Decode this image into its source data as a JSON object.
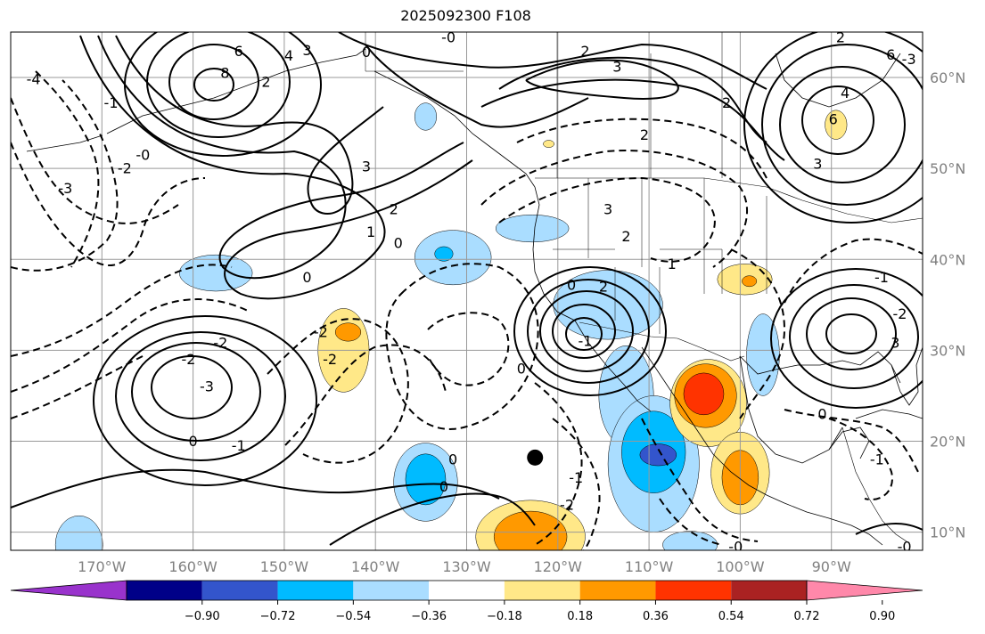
{
  "title": "2025092300 F108",
  "map": {
    "projection": "cylindrical",
    "lon_range": [
      -180,
      -80
    ],
    "lat_range": [
      8,
      65
    ],
    "lon_ticks": [
      {
        "value": -170,
        "label": "170°W"
      },
      {
        "value": -160,
        "label": "160°W"
      },
      {
        "value": -150,
        "label": "150°W"
      },
      {
        "value": -140,
        "label": "140°W"
      },
      {
        "value": -130,
        "label": "130°W"
      },
      {
        "value": -120,
        "label": "120°W"
      },
      {
        "value": -110,
        "label": "110°W"
      },
      {
        "value": -100,
        "label": "100°W"
      },
      {
        "value": -90,
        "label": "90°W"
      }
    ],
    "lat_ticks": [
      {
        "value": 60,
        "label": "60°N"
      },
      {
        "value": 50,
        "label": "50°N"
      },
      {
        "value": 40,
        "label": "40°N"
      },
      {
        "value": 30,
        "label": "30°N"
      },
      {
        "value": 20,
        "label": "20°N"
      },
      {
        "value": 10,
        "label": "10°N"
      }
    ],
    "grid": true,
    "marker": {
      "lon": -122.5,
      "lat": 18.2,
      "color": "#000000"
    }
  },
  "colorbar": {
    "colors": [
      "#9933cc",
      "#000088",
      "#3355cc",
      "#00bbff",
      "#aaddff",
      "#ffffff",
      "#ffe888",
      "#ff9900",
      "#ff3300",
      "#aa2222",
      "#ff88aa"
    ],
    "tick_labels": [
      "−0.90",
      "−0.72",
      "−0.54",
      "−0.36",
      "−0.18",
      "0.18",
      "0.36",
      "0.54",
      "0.72",
      "0.90"
    ],
    "extend": "both"
  },
  "shaded_regions": [
    {
      "level": "−0.36..−0.18",
      "color": "#aaddff",
      "center": [
        -157.5,
        38.5
      ],
      "radius": [
        4.0,
        2.0
      ]
    },
    {
      "level": "−0.36..−0.18",
      "color": "#aaddff",
      "center": [
        -131.5,
        40.2
      ],
      "radius": [
        4.2,
        3.0
      ]
    },
    {
      "level": "−0.54..−0.36",
      "color": "#00bbff",
      "center": [
        -132.5,
        40.6
      ],
      "radius": [
        1.0,
        0.8
      ]
    },
    {
      "level": "−0.36..−0.18",
      "color": "#aaddff",
      "center": [
        -114.5,
        35.0
      ],
      "radius": [
        6.0,
        3.8
      ]
    },
    {
      "level": "−0.36..−0.18",
      "color": "#aaddff",
      "center": [
        -112.5,
        25.0
      ],
      "radius": [
        3.0,
        5.5
      ]
    },
    {
      "level": "−0.36..−0.18",
      "color": "#aaddff",
      "center": [
        -109.5,
        17.5
      ],
      "radius": [
        5.0,
        7.5
      ]
    },
    {
      "level": "−0.54..−0.36",
      "color": "#00bbff",
      "center": [
        -109.5,
        18.8
      ],
      "radius": [
        3.5,
        4.5
      ]
    },
    {
      "level": "−0.72..−0.54",
      "color": "#3355cc",
      "center": [
        -109.0,
        18.5
      ],
      "radius": [
        2.0,
        1.2
      ]
    },
    {
      "level": "−0.36..−0.18",
      "color": "#aaddff",
      "center": [
        -134.5,
        15.5
      ],
      "radius": [
        3.5,
        4.3
      ]
    },
    {
      "level": "−0.54..−0.36",
      "color": "#00bbff",
      "center": [
        -134.5,
        15.8
      ],
      "radius": [
        2.2,
        2.8
      ]
    },
    {
      "level": "−0.36..−0.18",
      "color": "#aaddff",
      "center": [
        -122.8,
        43.4
      ],
      "radius": [
        4.0,
        1.5
      ]
    },
    {
      "level": "−0.36..−0.18",
      "color": "#aaddff",
      "center": [
        -97.5,
        29.5
      ],
      "radius": [
        1.8,
        4.5
      ]
    },
    {
      "level": "−0.36..−0.18",
      "color": "#aaddff",
      "center": [
        -172.5,
        8.6
      ],
      "radius": [
        2.6,
        3.2
      ]
    },
    {
      "level": "−0.36..−0.18",
      "color": "#aaddff",
      "center": [
        -134.5,
        55.7
      ],
      "radius": [
        1.2,
        1.5
      ]
    },
    {
      "level": "−0.36..−0.18",
      "color": "#aaddff",
      "center": [
        -105.5,
        8.6
      ],
      "radius": [
        3.0,
        1.5
      ]
    },
    {
      "level": "0.18..0.36",
      "color": "#ffe888",
      "center": [
        -143.5,
        30.0
      ],
      "radius": [
        2.8,
        4.6
      ]
    },
    {
      "level": "0.36..0.54",
      "color": "#ff9900",
      "center": [
        -143.0,
        32.0
      ],
      "radius": [
        1.4,
        1.0
      ]
    },
    {
      "level": "0.18..0.36",
      "color": "#ffe888",
      "center": [
        -99.5,
        37.8
      ],
      "radius": [
        3.0,
        1.7
      ]
    },
    {
      "level": "0.36..0.54",
      "color": "#ff9900",
      "center": [
        -99.0,
        37.6
      ],
      "radius": [
        0.8,
        0.6
      ]
    },
    {
      "level": "0.18..0.36",
      "color": "#ffe888",
      "center": [
        -89.5,
        54.8
      ],
      "radius": [
        1.2,
        1.6
      ]
    },
    {
      "level": "0.18..0.36",
      "color": "#ffe888",
      "center": [
        -103.5,
        24.2
      ],
      "radius": [
        4.2,
        4.8
      ]
    },
    {
      "level": "0.36..0.54",
      "color": "#ff9900",
      "center": [
        -103.8,
        25.0
      ],
      "radius": [
        3.4,
        3.5
      ]
    },
    {
      "level": "0.54..0.72",
      "color": "#ff3300",
      "center": [
        -104.0,
        25.2
      ],
      "radius": [
        2.2,
        2.3
      ]
    },
    {
      "level": "0.18..0.36",
      "color": "#ffe888",
      "center": [
        -100.0,
        16.5
      ],
      "radius": [
        3.2,
        4.5
      ]
    },
    {
      "level": "0.36..0.54",
      "color": "#ff9900",
      "center": [
        -100.0,
        16.0
      ],
      "radius": [
        2.0,
        3.0
      ]
    },
    {
      "level": "0.18..0.36",
      "color": "#ffe888",
      "center": [
        -123.0,
        9.5
      ],
      "radius": [
        6.0,
        4.0
      ]
    },
    {
      "level": "0.36..0.54",
      "color": "#ff9900",
      "center": [
        -123.0,
        9.5
      ],
      "radius": [
        4.0,
        2.8
      ]
    },
    {
      "level": "0.18..0.36",
      "color": "#ffe888",
      "center": [
        -121.0,
        52.7
      ],
      "radius": [
        0.6,
        0.4
      ]
    }
  ],
  "contour_labels": [
    {
      "text": "-0",
      "lon": -132.0,
      "lat": 64.4
    },
    {
      "text": "6",
      "lon": -155.0,
      "lat": 62.9
    },
    {
      "text": "8",
      "lon": -156.5,
      "lat": 60.5
    },
    {
      "text": "4",
      "lon": -149.5,
      "lat": 62.4
    },
    {
      "text": "3",
      "lon": -147.5,
      "lat": 63.0
    },
    {
      "text": "2",
      "lon": -152.0,
      "lat": 59.5
    },
    {
      "text": "0",
      "lon": -141.0,
      "lat": 62.8
    },
    {
      "text": "2",
      "lon": -117.0,
      "lat": 62.9
    },
    {
      "text": "3",
      "lon": -113.5,
      "lat": 61.2
    },
    {
      "text": "2",
      "lon": -101.5,
      "lat": 57.2
    },
    {
      "text": "2",
      "lon": -110.5,
      "lat": 53.7
    },
    {
      "text": "2",
      "lon": -89.0,
      "lat": 64.4
    },
    {
      "text": "6",
      "lon": -83.5,
      "lat": 62.5
    },
    {
      "text": "4",
      "lon": -88.5,
      "lat": 58.3
    },
    {
      "text": "6",
      "lon": -89.8,
      "lat": 55.4
    },
    {
      "text": "3",
      "lon": -91.5,
      "lat": 50.5
    },
    {
      "text": "-4",
      "lon": -177.5,
      "lat": 59.8
    },
    {
      "text": "-1",
      "lon": -169.0,
      "lat": 57.2
    },
    {
      "text": "-0",
      "lon": -165.5,
      "lat": 51.5
    },
    {
      "text": "-2",
      "lon": -167.5,
      "lat": 50.0
    },
    {
      "text": "-3",
      "lon": -174.0,
      "lat": 47.8
    },
    {
      "text": "3",
      "lon": -141.0,
      "lat": 50.2
    },
    {
      "text": "2",
      "lon": -138.0,
      "lat": 45.5
    },
    {
      "text": "1",
      "lon": -140.5,
      "lat": 43.0
    },
    {
      "text": "0",
      "lon": -137.5,
      "lat": 41.8
    },
    {
      "text": "0",
      "lon": -147.5,
      "lat": 38.0
    },
    {
      "text": "3",
      "lon": -114.5,
      "lat": 45.5
    },
    {
      "text": "2",
      "lon": -112.5,
      "lat": 42.5
    },
    {
      "text": "1",
      "lon": -107.5,
      "lat": 39.5
    },
    {
      "text": "0",
      "lon": -118.5,
      "lat": 37.2
    },
    {
      "text": "2",
      "lon": -115.0,
      "lat": 37.0
    },
    {
      "text": "-2",
      "lon": -146.0,
      "lat": 32.0
    },
    {
      "text": "-2",
      "lon": -145.0,
      "lat": 29.0
    },
    {
      "text": "-2",
      "lon": -157.0,
      "lat": 30.8
    },
    {
      "text": "-2",
      "lon": -160.5,
      "lat": 29.0
    },
    {
      "text": "-3",
      "lon": -158.5,
      "lat": 26.0
    },
    {
      "text": "0",
      "lon": -160.0,
      "lat": 20.0
    },
    {
      "text": "-1",
      "lon": -155.0,
      "lat": 19.5
    },
    {
      "text": "0",
      "lon": -124.0,
      "lat": 28.0
    },
    {
      "text": "0",
      "lon": -131.5,
      "lat": 18.0
    },
    {
      "text": "0",
      "lon": -132.5,
      "lat": 15.0
    },
    {
      "text": "-1",
      "lon": -118.0,
      "lat": 16.0
    },
    {
      "text": "-2",
      "lon": -119.0,
      "lat": 13.0
    },
    {
      "text": "-1",
      "lon": -117.0,
      "lat": 31.0
    },
    {
      "text": "0",
      "lon": -91.0,
      "lat": 23.0
    },
    {
      "text": "-1",
      "lon": -85.0,
      "lat": 18.0
    },
    {
      "text": "-1",
      "lon": -84.5,
      "lat": 38.0
    },
    {
      "text": "-2",
      "lon": -82.5,
      "lat": 34.0
    },
    {
      "text": "3",
      "lon": -83.0,
      "lat": 30.8
    },
    {
      "text": "-0",
      "lon": -100.5,
      "lat": 8.4
    },
    {
      "text": "-0",
      "lon": -82.0,
      "lat": 8.4
    },
    {
      "text": "-3",
      "lon": -81.5,
      "lat": 62.0
    }
  ]
}
